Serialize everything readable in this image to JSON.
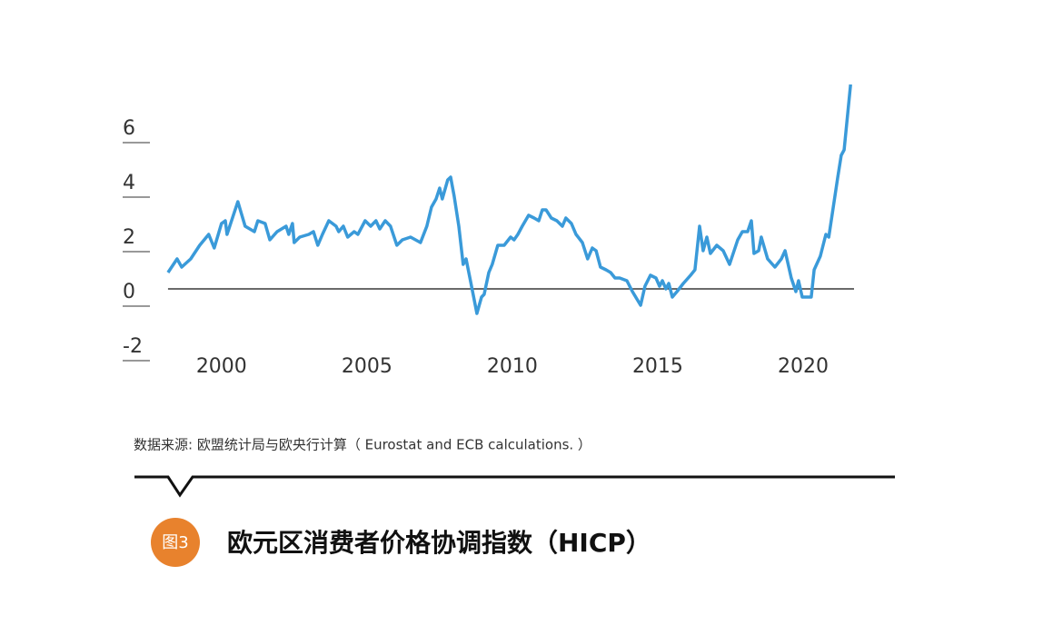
{
  "chart_data": {
    "type": "line",
    "title": "欧元区消费者价格协调指数（HICP）",
    "figure_label": "图3",
    "source": "数据来源: 欧盟统计局与欧央行计算（ Eurostat and  ECB calculations. ）",
    "color": "#3a9ad9",
    "x": [
      1998.16,
      1998.47,
      1998.63,
      1998.94,
      1999.25,
      1999.56,
      1999.75,
      2000.0,
      2000.13,
      2000.19,
      2000.56,
      2000.81,
      2001.13,
      2001.25,
      2001.5,
      2001.66,
      2001.91,
      2002.22,
      2002.31,
      2002.44,
      2002.5,
      2002.69,
      2003.0,
      2003.16,
      2003.31,
      2003.47,
      2003.69,
      2003.94,
      2004.03,
      2004.19,
      2004.34,
      2004.56,
      2004.69,
      2004.94,
      2005.13,
      2005.31,
      2005.44,
      2005.63,
      2005.81,
      2006.03,
      2006.22,
      2006.5,
      2006.84,
      2007.06,
      2007.22,
      2007.38,
      2007.5,
      2007.59,
      2007.78,
      2007.88,
      2008.0,
      2008.16,
      2008.31,
      2008.41,
      2008.56,
      2008.78,
      2008.94,
      2009.03,
      2009.19,
      2009.31,
      2009.5,
      2009.72,
      2009.94,
      2010.06,
      2010.19,
      2010.34,
      2010.56,
      2010.75,
      2010.91,
      2011.03,
      2011.16,
      2011.34,
      2011.53,
      2011.72,
      2011.84,
      2012.03,
      2012.19,
      2012.41,
      2012.59,
      2012.75,
      2012.88,
      2013.03,
      2013.22,
      2013.38,
      2013.53,
      2013.69,
      2013.94,
      2014.13,
      2014.41,
      2014.56,
      2014.75,
      2014.94,
      2015.06,
      2015.16,
      2015.28,
      2015.38,
      2015.5,
      2015.66,
      2015.88,
      2016.13,
      2016.28,
      2016.44,
      2016.56,
      2016.69,
      2016.81,
      2017.03,
      2017.25,
      2017.47,
      2017.75,
      2017.91,
      2018.09,
      2018.22,
      2018.31,
      2018.47,
      2018.56,
      2018.78,
      2019.03,
      2019.25,
      2019.38,
      2019.59,
      2019.75,
      2019.84,
      2019.97,
      2020.28,
      2020.38,
      2020.59,
      2020.78,
      2020.88,
      2021.19,
      2021.31,
      2021.41,
      2021.63
    ],
    "values": [
      0.6,
      1.1,
      0.8,
      1.1,
      1.6,
      2.0,
      1.5,
      2.4,
      2.5,
      2.0,
      3.2,
      2.3,
      2.1,
      2.5,
      2.4,
      1.8,
      2.1,
      2.3,
      2.0,
      2.4,
      1.7,
      1.9,
      2.0,
      2.1,
      1.6,
      2.0,
      2.5,
      2.3,
      2.1,
      2.3,
      1.9,
      2.1,
      2.0,
      2.5,
      2.3,
      2.5,
      2.2,
      2.5,
      2.3,
      1.6,
      1.8,
      1.9,
      1.7,
      2.3,
      3.0,
      3.3,
      3.7,
      3.3,
      4.0,
      4.1,
      3.4,
      2.3,
      0.9,
      1.1,
      0.3,
      -0.9,
      -0.3,
      -0.2,
      0.6,
      0.9,
      1.6,
      1.6,
      1.9,
      1.8,
      2.0,
      2.3,
      2.7,
      2.6,
      2.5,
      2.9,
      2.9,
      2.6,
      2.5,
      2.3,
      2.6,
      2.4,
      2.0,
      1.7,
      1.1,
      1.5,
      1.4,
      0.8,
      0.7,
      0.6,
      0.4,
      0.4,
      0.3,
      -0.1,
      -0.6,
      0.1,
      0.5,
      0.4,
      0.1,
      0.3,
      0.0,
      0.2,
      -0.3,
      -0.1,
      0.2,
      0.5,
      0.7,
      2.3,
      1.4,
      1.9,
      1.3,
      1.6,
      1.4,
      0.9,
      1.8,
      2.1,
      2.1,
      2.5,
      1.3,
      1.4,
      1.9,
      1.1,
      0.8,
      1.1,
      1.4,
      0.4,
      -0.1,
      0.3,
      -0.3,
      -0.3,
      0.7,
      1.2,
      2.0,
      1.9,
      4.1,
      4.9,
      5.1,
      7.5
    ],
    "xlim": [
      1996.6,
      2021.75
    ],
    "xticks": [
      2000,
      2005,
      2010,
      2015,
      2020
    ],
    "ylim": [
      -2.5,
      8
    ],
    "yticks": [
      -2,
      0,
      2,
      4,
      6
    ]
  }
}
